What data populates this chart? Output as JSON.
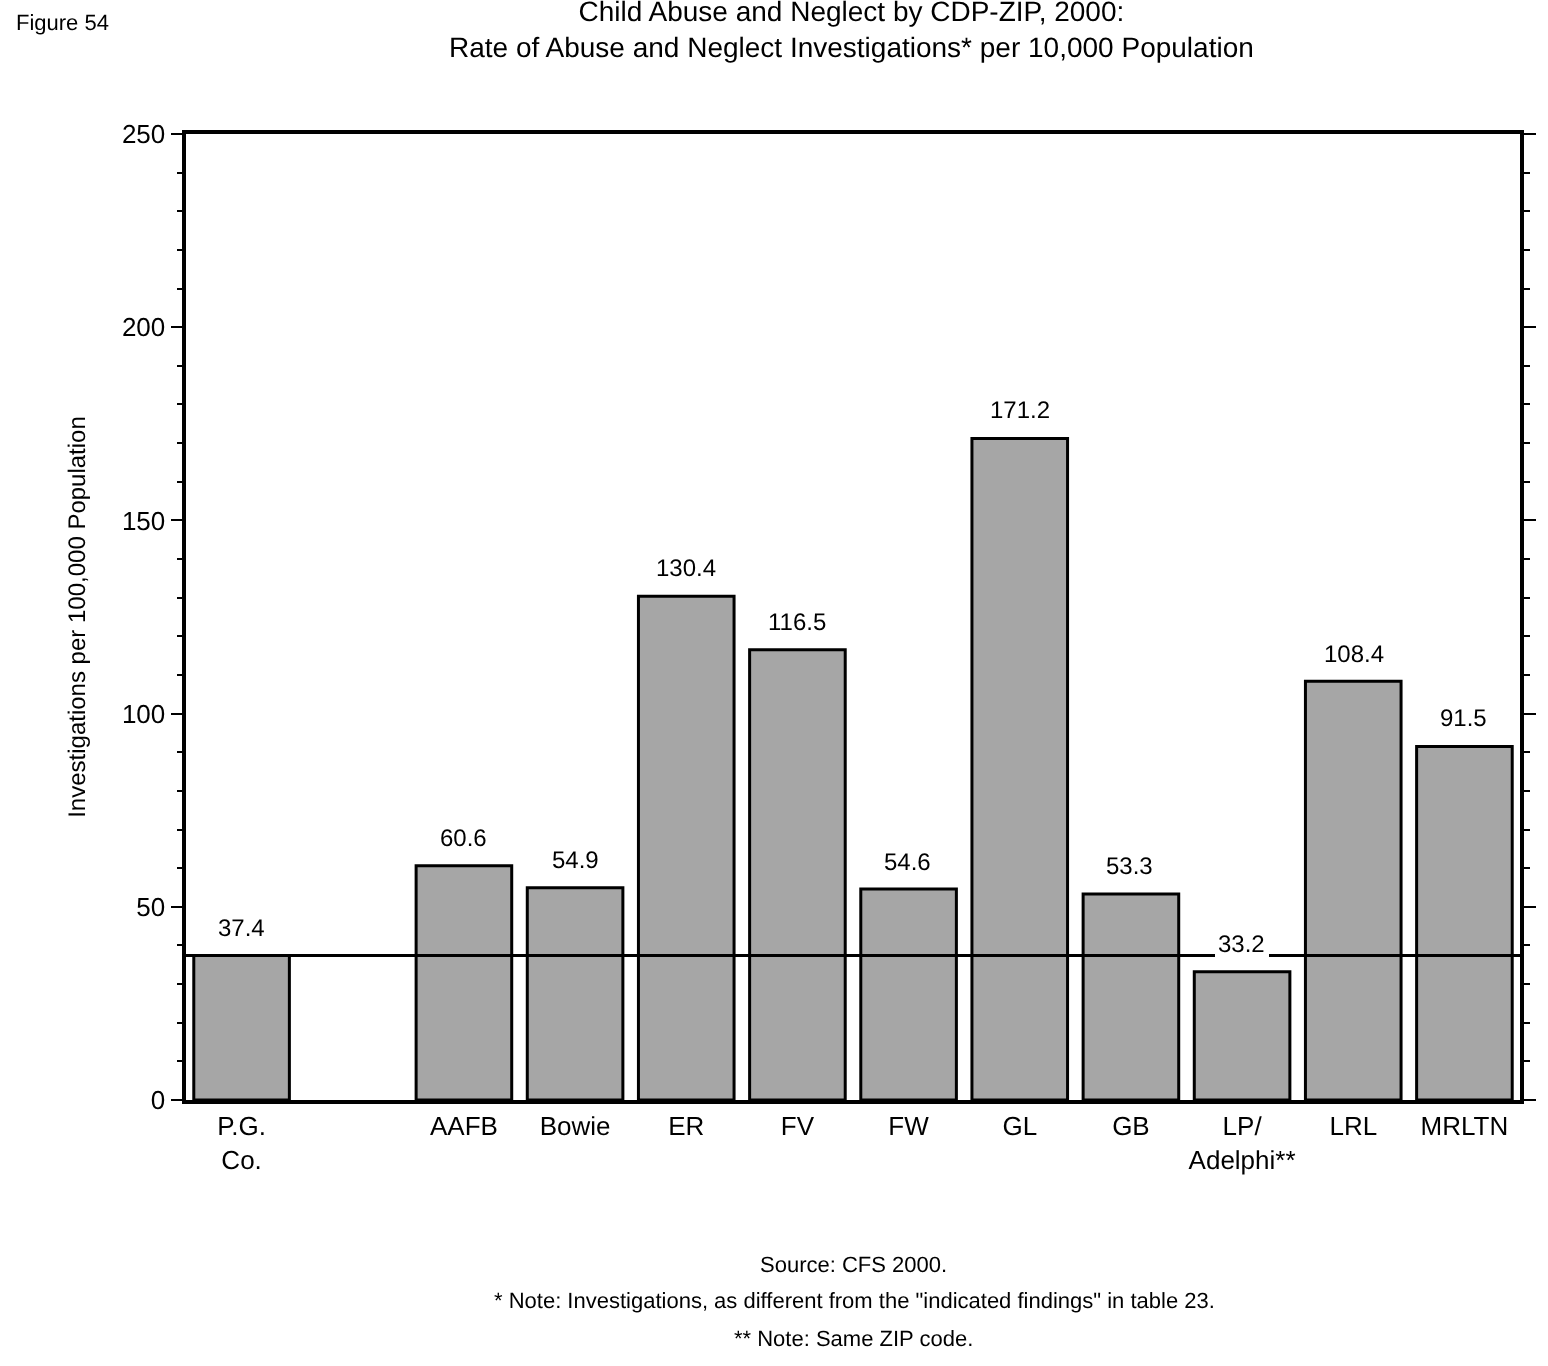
{
  "chart_data": {
    "type": "bar",
    "title": "Child Abuse and Neglect by CDP-ZIP, 2000:\nRate of Abuse and Neglect Investigations* per 10,000 Population",
    "ylabel": "Investigations per 100,000 Population",
    "categories": [
      "P.G.\nCo.",
      null,
      "AAFB",
      "Bowie",
      "ER",
      "FV",
      "FW",
      "GL",
      "GB",
      "LP/\nAdelphi**",
      "LRL",
      "MRLTN"
    ],
    "values": [
      37.4,
      null,
      60.6,
      54.9,
      130.4,
      116.5,
      54.6,
      171.2,
      53.3,
      33.2,
      108.4,
      91.5
    ],
    "color": "#a6a6a6",
    "ylim": [
      0,
      250
    ],
    "yticks": [
      0,
      50,
      100,
      150,
      200,
      250
    ],
    "data_labels": true,
    "ref_lines": [
      {
        "axis": "y",
        "value": 37.4,
        "color": "#000000"
      }
    ],
    "annotations": [
      "Figure 54",
      "Source: CFS 2000.",
      "* Note: Investigations, as different from the \"indicated findings\" in table 23.",
      "** Note: Same ZIP code."
    ]
  }
}
